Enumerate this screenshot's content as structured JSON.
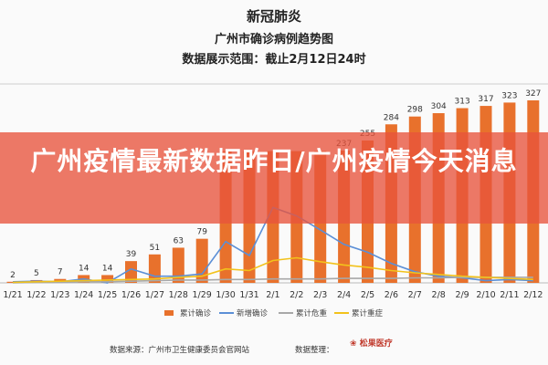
{
  "header": {
    "title": "新冠肺炎",
    "subtitle": "广州市确诊病例趋势图",
    "range": "数据展示范围：截止2月12日24时"
  },
  "overlay": {
    "headline": "广州疫情最新数据昨日/广州疫情今天消息"
  },
  "footer": {
    "source": "数据来源：广州市卫生健康委员会官网站",
    "editor": "数据整理：",
    "logo_text": "松果医疗"
  },
  "colors": {
    "bar": "#e8712c",
    "new_confirmed": "#5b8fd6",
    "critical": "#a8a8a8",
    "severe": "#f2c21b",
    "banner": "#e8533c"
  },
  "chart_data": {
    "type": "bar",
    "categories": [
      "1/21",
      "1/22",
      "1/23",
      "1/24",
      "1/25",
      "1/26",
      "1/27",
      "1/28",
      "1/29",
      "1/30",
      "1/31",
      "2/1",
      "2/2",
      "2/3",
      "2/4",
      "2/5",
      "2/6",
      "2/7",
      "2/8",
      "2/9",
      "2/10",
      "2/11",
      "2/12"
    ],
    "series": [
      {
        "name": "累计确诊",
        "kind": "bar",
        "values": [
          2,
          5,
          7,
          14,
          14,
          39,
          51,
          63,
          79,
          null,
          null,
          null,
          null,
          null,
          237,
          255,
          284,
          298,
          304,
          313,
          317,
          323,
          327
        ],
        "labels": [
          "2",
          "5",
          "7",
          "14",
          "14",
          "39",
          "51",
          "63",
          "79",
          "",
          "",
          "",
          "",
          "",
          "237",
          "255",
          "284",
          "298",
          "304",
          "313",
          "317",
          "323",
          "327"
        ]
      },
      {
        "name": "新增确诊",
        "kind": "line",
        "values": [
          2,
          3,
          2,
          7,
          0,
          25,
          12,
          12,
          16,
          74,
          49,
          135,
          120,
          95,
          69,
          55,
          35,
          20,
          12,
          9,
          4,
          6,
          4
        ]
      },
      {
        "name": "累计危重",
        "kind": "line",
        "values": [
          0,
          1,
          1,
          2,
          2,
          3,
          4,
          5,
          5,
          6,
          6,
          7,
          7,
          7,
          8,
          8,
          8,
          9,
          9,
          10,
          10,
          10,
          10
        ]
      },
      {
        "name": "累计重症",
        "kind": "line",
        "values": [
          1,
          2,
          3,
          4,
          5,
          6,
          7,
          10,
          12,
          25,
          22,
          40,
          45,
          38,
          32,
          28,
          22,
          18,
          15,
          12,
          10,
          8,
          6
        ]
      }
    ],
    "ylim": [
      0,
      340
    ],
    "legend_position": "bottom"
  }
}
